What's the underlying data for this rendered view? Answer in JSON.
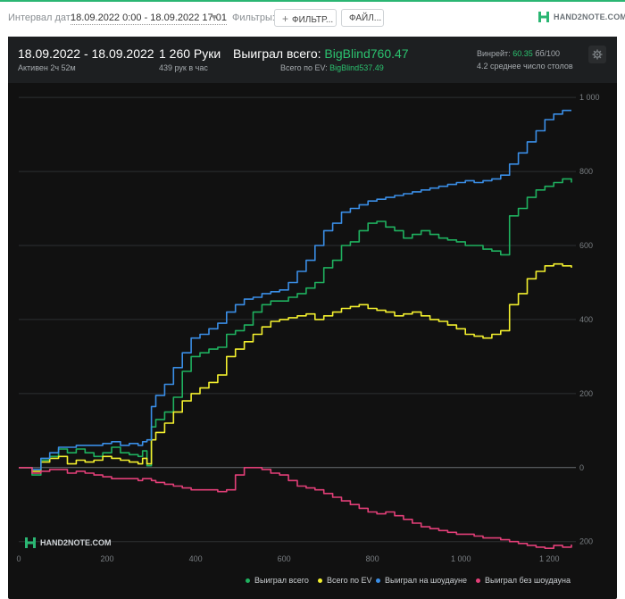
{
  "toolbar": {
    "date_interval_label": "Интервал дат:",
    "date_interval_value": "18.09.2022 0:00 - 18.09.2022 17:01",
    "filters_label": "Фильтры:",
    "filter_button": "ФИЛЬТР...",
    "files_button": "ФАЙЛ...",
    "brand_text": "HAND2NOTE.COM"
  },
  "summary": {
    "date_range": "18.09.2022 - 18.09.2022",
    "active_time": "Активен 2ч 52м",
    "hands": "1 260 Руки",
    "hands_per_hour": "439 рук в час",
    "won_total_label": "Выиграл всего:",
    "won_total_value": "BigBlind760.47",
    "ev_total_label": "Всего по EV:",
    "ev_total_value": "BigBlind537.49",
    "winrate_label": "Винрейт:",
    "winrate_value": "60.35",
    "winrate_unit": "бб/100",
    "avg_tables": "4.2 среднее число столов"
  },
  "colors": {
    "accent": "#2bc26f",
    "won_total": "#1fb15f",
    "ev": "#f3f02e",
    "showdown": "#3a8ee6",
    "non_showdown": "#e23f78"
  },
  "chart_data": {
    "type": "line",
    "xlim": [
      0,
      1260
    ],
    "ylim": [
      -220,
      1010
    ],
    "x_ticks": [
      {
        "value": 0,
        "label": "0"
      },
      {
        "value": 200,
        "label": "200"
      },
      {
        "value": 400,
        "label": "400"
      },
      {
        "value": 600,
        "label": "600"
      },
      {
        "value": 800,
        "label": "800"
      },
      {
        "value": 1000,
        "label": "1 000"
      },
      {
        "value": 1200,
        "label": "1 200"
      }
    ],
    "y_ticks": [
      {
        "value": 1000,
        "label": "1 000"
      },
      {
        "value": 800,
        "label": "800"
      },
      {
        "value": 600,
        "label": "600"
      },
      {
        "value": 400,
        "label": "400"
      },
      {
        "value": 200,
        "label": "200"
      },
      {
        "value": 0,
        "label": "0"
      },
      {
        "value": -200,
        "label": "200"
      }
    ],
    "grid": true,
    "legend_position": "bottom-right",
    "watermark": "HAND2NOTE.COM",
    "series": [
      {
        "name": "Выиграл всего",
        "color": "#1fb15f",
        "x": [
          0,
          30,
          50,
          70,
          90,
          110,
          130,
          150,
          170,
          190,
          210,
          230,
          250,
          270,
          280,
          290,
          300,
          310,
          330,
          350,
          370,
          390,
          410,
          430,
          450,
          470,
          490,
          510,
          530,
          550,
          570,
          590,
          610,
          630,
          650,
          670,
          690,
          710,
          730,
          750,
          770,
          790,
          810,
          830,
          850,
          870,
          890,
          910,
          930,
          950,
          970,
          990,
          1010,
          1030,
          1050,
          1070,
          1090,
          1110,
          1130,
          1150,
          1170,
          1190,
          1210,
          1230,
          1250
        ],
        "y": [
          0,
          -20,
          20,
          30,
          50,
          40,
          50,
          40,
          30,
          40,
          55,
          40,
          35,
          30,
          45,
          5,
          110,
          130,
          150,
          190,
          260,
          300,
          310,
          320,
          325,
          360,
          370,
          385,
          420,
          440,
          450,
          450,
          460,
          470,
          485,
          500,
          540,
          560,
          600,
          610,
          640,
          660,
          665,
          650,
          640,
          620,
          630,
          640,
          630,
          620,
          615,
          610,
          600,
          600,
          590,
          585,
          575,
          680,
          700,
          730,
          750,
          760,
          770,
          780,
          770
        ]
      },
      {
        "name": "Всего по EV",
        "color": "#f3f02e",
        "x": [
          0,
          30,
          50,
          70,
          90,
          110,
          130,
          150,
          170,
          190,
          210,
          230,
          250,
          270,
          280,
          290,
          300,
          310,
          330,
          350,
          370,
          390,
          410,
          430,
          450,
          470,
          490,
          510,
          530,
          550,
          570,
          590,
          610,
          630,
          650,
          670,
          690,
          710,
          730,
          750,
          770,
          790,
          810,
          830,
          850,
          870,
          890,
          910,
          930,
          950,
          970,
          990,
          1010,
          1030,
          1050,
          1070,
          1090,
          1110,
          1130,
          1150,
          1170,
          1190,
          1210,
          1230,
          1250
        ],
        "y": [
          0,
          -10,
          15,
          25,
          30,
          10,
          20,
          15,
          20,
          30,
          25,
          20,
          15,
          10,
          25,
          10,
          75,
          95,
          120,
          150,
          180,
          200,
          215,
          230,
          250,
          300,
          320,
          340,
          360,
          380,
          395,
          400,
          405,
          410,
          415,
          400,
          410,
          420,
          430,
          435,
          440,
          430,
          425,
          420,
          410,
          415,
          420,
          410,
          400,
          395,
          385,
          375,
          360,
          355,
          350,
          360,
          370,
          440,
          470,
          510,
          530,
          545,
          550,
          545,
          540
        ]
      },
      {
        "name": "Выиграл на шоудауне",
        "color": "#3a8ee6",
        "x": [
          0,
          30,
          50,
          70,
          90,
          110,
          130,
          150,
          170,
          190,
          210,
          230,
          250,
          270,
          280,
          290,
          300,
          310,
          330,
          350,
          370,
          390,
          410,
          430,
          450,
          470,
          490,
          510,
          530,
          550,
          570,
          590,
          610,
          630,
          650,
          670,
          690,
          710,
          730,
          750,
          770,
          790,
          810,
          830,
          850,
          870,
          890,
          910,
          930,
          950,
          970,
          990,
          1010,
          1030,
          1050,
          1070,
          1090,
          1110,
          1130,
          1150,
          1170,
          1190,
          1210,
          1230,
          1250
        ],
        "y": [
          0,
          -5,
          25,
          40,
          55,
          55,
          60,
          60,
          60,
          65,
          70,
          60,
          65,
          60,
          70,
          75,
          165,
          195,
          225,
          270,
          310,
          350,
          360,
          375,
          390,
          420,
          440,
          455,
          460,
          470,
          475,
          480,
          500,
          530,
          560,
          600,
          640,
          660,
          690,
          700,
          710,
          720,
          725,
          730,
          735,
          740,
          745,
          750,
          755,
          760,
          765,
          770,
          775,
          770,
          775,
          780,
          790,
          820,
          850,
          880,
          910,
          940,
          955,
          965,
          965
        ]
      },
      {
        "name": "Выиграл без шоудауна",
        "color": "#e23f78",
        "x": [
          0,
          30,
          50,
          70,
          90,
          110,
          130,
          150,
          170,
          190,
          210,
          230,
          250,
          270,
          280,
          290,
          300,
          310,
          330,
          350,
          370,
          390,
          410,
          430,
          450,
          470,
          490,
          510,
          530,
          550,
          570,
          590,
          610,
          630,
          650,
          670,
          690,
          710,
          730,
          750,
          770,
          790,
          810,
          830,
          850,
          870,
          890,
          910,
          930,
          950,
          970,
          990,
          1010,
          1030,
          1050,
          1070,
          1090,
          1110,
          1130,
          1150,
          1170,
          1190,
          1210,
          1230,
          1250
        ],
        "y": [
          0,
          -15,
          -10,
          -5,
          -5,
          -15,
          -10,
          -15,
          -20,
          -25,
          -30,
          -30,
          -30,
          -35,
          -30,
          -30,
          -35,
          -40,
          -45,
          -50,
          -55,
          -60,
          -60,
          -60,
          -65,
          -60,
          -20,
          0,
          0,
          -5,
          -15,
          -20,
          -35,
          -50,
          -55,
          -60,
          -70,
          -80,
          -90,
          -100,
          -110,
          -120,
          -125,
          -120,
          -130,
          -140,
          -150,
          -160,
          -165,
          -170,
          -175,
          -180,
          -180,
          -185,
          -190,
          -190,
          -195,
          -200,
          -205,
          -210,
          -215,
          -218,
          -210,
          -215,
          -208
        ]
      }
    ]
  }
}
